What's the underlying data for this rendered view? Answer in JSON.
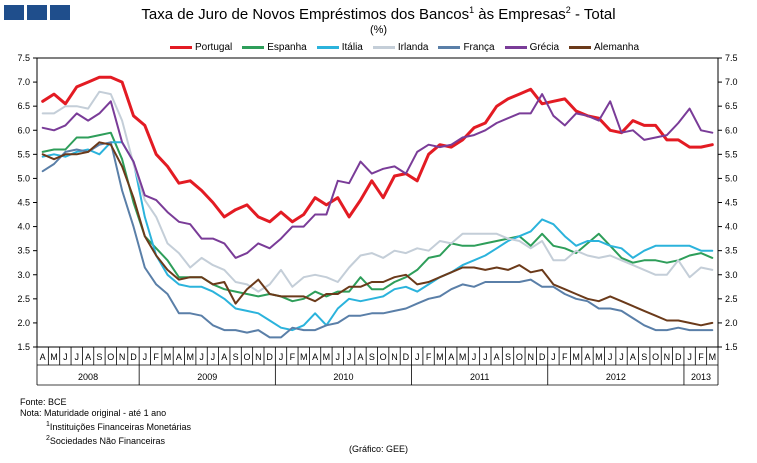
{
  "chart_data": {
    "type": "line",
    "title_text": "Taxa de Juro de Novos Empréstimos  dos Bancos",
    "title_mid": " às Empresas",
    "title_end": " - Total",
    "title_sup1": "1",
    "title_sup2": "2",
    "subtitle": "(%)",
    "ylim": [
      1.5,
      7.5
    ],
    "yticks": [
      "1.5",
      "2.0",
      "2.5",
      "3.0",
      "3.5",
      "4.0",
      "4.5",
      "5.0",
      "5.5",
      "6.0",
      "6.5",
      "7.0",
      "7.5"
    ],
    "x_month_labels": [
      "A",
      "M",
      "J",
      "J",
      "A",
      "S",
      "O",
      "N",
      "D",
      "J",
      "F",
      "M",
      "A",
      "M",
      "J",
      "J",
      "A",
      "S",
      "O",
      "N",
      "D",
      "J",
      "F",
      "M",
      "A",
      "M",
      "J",
      "J",
      "A",
      "S",
      "O",
      "N",
      "D",
      "J",
      "F",
      "M",
      "A",
      "M",
      "J",
      "J",
      "A",
      "S",
      "O",
      "N",
      "D",
      "J",
      "F",
      "M",
      "A",
      "M",
      "J",
      "J",
      "A",
      "S",
      "O",
      "N",
      "D",
      "J",
      "F",
      "M"
    ],
    "year_labels": [
      {
        "label": "2008",
        "start": 0,
        "end": 9
      },
      {
        "label": "2009",
        "start": 9,
        "end": 21
      },
      {
        "label": "2010",
        "start": 21,
        "end": 33
      },
      {
        "label": "2011",
        "start": 33,
        "end": 45
      },
      {
        "label": "2012",
        "start": 45,
        "end": 57
      },
      {
        "label": "2013",
        "start": 57,
        "end": 60
      }
    ],
    "series": [
      {
        "name": "Portugal",
        "color": "#e31b23",
        "width": 3,
        "values": [
          6.6,
          6.75,
          6.55,
          6.9,
          7.0,
          7.1,
          7.1,
          7.0,
          6.3,
          6.1,
          5.5,
          5.25,
          4.9,
          4.95,
          4.75,
          4.5,
          4.2,
          4.35,
          4.45,
          4.2,
          4.1,
          4.3,
          4.1,
          4.25,
          4.6,
          4.45,
          4.6,
          4.2,
          4.55,
          4.95,
          4.6,
          5.05,
          5.1,
          4.95,
          5.5,
          5.7,
          5.65,
          5.8,
          6.05,
          6.15,
          6.5,
          6.65,
          6.75,
          6.85,
          6.55,
          6.6,
          6.65,
          6.4,
          6.3,
          6.25,
          6.0,
          5.95,
          6.2,
          6.1,
          6.1,
          5.8,
          5.8,
          5.65,
          5.65,
          5.7
        ]
      },
      {
        "name": "Espanha",
        "color": "#2e9e5a",
        "width": 2,
        "values": [
          5.55,
          5.6,
          5.6,
          5.85,
          5.85,
          5.9,
          5.95,
          5.4,
          4.5,
          3.8,
          3.55,
          3.3,
          2.95,
          2.95,
          2.95,
          2.8,
          2.7,
          2.65,
          2.6,
          2.55,
          2.6,
          2.55,
          2.45,
          2.5,
          2.65,
          2.55,
          2.65,
          2.65,
          2.95,
          2.7,
          2.7,
          2.85,
          2.95,
          3.1,
          3.35,
          3.4,
          3.65,
          3.6,
          3.6,
          3.65,
          3.7,
          3.75,
          3.8,
          3.6,
          3.85,
          3.6,
          3.55,
          3.45,
          3.65,
          3.85,
          3.6,
          3.35,
          3.25,
          3.3,
          3.3,
          3.25,
          3.3,
          3.4,
          3.45,
          3.35
        ]
      },
      {
        "name": "Itália",
        "color": "#2bb3dc",
        "width": 2,
        "values": [
          5.45,
          5.5,
          5.45,
          5.55,
          5.6,
          5.5,
          5.75,
          5.75,
          5.35,
          4.2,
          3.4,
          3.0,
          2.8,
          2.75,
          2.75,
          2.65,
          2.5,
          2.3,
          2.25,
          2.2,
          2.05,
          1.9,
          1.85,
          1.95,
          2.2,
          1.95,
          2.3,
          2.5,
          2.45,
          2.5,
          2.55,
          2.7,
          2.75,
          2.65,
          2.8,
          2.95,
          3.05,
          3.2,
          3.3,
          3.4,
          3.55,
          3.7,
          3.8,
          3.9,
          4.15,
          4.05,
          3.8,
          3.6,
          3.7,
          3.7,
          3.6,
          3.55,
          3.35,
          3.5,
          3.6,
          3.6,
          3.6,
          3.6,
          3.5,
          3.5
        ]
      },
      {
        "name": "Irlanda",
        "color": "#c4ced8",
        "width": 2,
        "values": [
          6.35,
          6.35,
          6.5,
          6.5,
          6.45,
          6.8,
          6.75,
          6.2,
          5.3,
          4.55,
          4.2,
          3.65,
          3.45,
          3.15,
          3.35,
          3.2,
          3.1,
          2.85,
          2.8,
          2.65,
          2.8,
          3.1,
          2.75,
          2.95,
          3.0,
          2.95,
          2.85,
          3.15,
          3.4,
          3.45,
          3.35,
          3.5,
          3.45,
          3.55,
          3.5,
          3.7,
          3.65,
          3.85,
          3.85,
          3.85,
          3.85,
          3.75,
          3.7,
          3.55,
          3.7,
          3.3,
          3.3,
          3.5,
          3.4,
          3.35,
          3.4,
          3.3,
          3.2,
          3.1,
          3.0,
          3.0,
          3.3,
          2.95,
          3.15,
          3.1
        ]
      },
      {
        "name": "França",
        "color": "#5a7fa8",
        "width": 2,
        "values": [
          5.15,
          5.3,
          5.55,
          5.6,
          5.55,
          5.7,
          5.75,
          4.75,
          4.0,
          3.15,
          2.8,
          2.6,
          2.2,
          2.2,
          2.15,
          1.95,
          1.85,
          1.85,
          1.8,
          1.85,
          1.7,
          1.7,
          1.9,
          1.85,
          1.85,
          1.95,
          2.0,
          2.15,
          2.15,
          2.2,
          2.2,
          2.25,
          2.3,
          2.4,
          2.5,
          2.55,
          2.7,
          2.8,
          2.75,
          2.85,
          2.85,
          2.85,
          2.85,
          2.9,
          2.75,
          2.75,
          2.6,
          2.5,
          2.45,
          2.3,
          2.3,
          2.25,
          2.1,
          1.95,
          1.85,
          1.85,
          1.9,
          1.85,
          1.85,
          1.85
        ]
      },
      {
        "name": "Grécia",
        "color": "#7a3c98",
        "width": 2,
        "values": [
          6.05,
          6.0,
          6.1,
          6.35,
          6.2,
          6.35,
          6.6,
          5.75,
          5.35,
          4.65,
          4.55,
          4.3,
          4.1,
          4.05,
          3.75,
          3.75,
          3.65,
          3.35,
          3.45,
          3.65,
          3.55,
          3.75,
          4.0,
          4.0,
          4.25,
          4.25,
          4.95,
          4.9,
          5.35,
          5.1,
          5.2,
          5.25,
          5.1,
          5.55,
          5.7,
          5.65,
          5.7,
          5.85,
          5.9,
          6.0,
          6.15,
          6.25,
          6.35,
          6.35,
          6.75,
          6.3,
          6.1,
          6.35,
          6.3,
          6.2,
          6.6,
          5.95,
          6.0,
          5.8,
          5.85,
          5.9,
          6.15,
          6.45,
          6.0,
          5.95
        ]
      },
      {
        "name": "Alemanha",
        "color": "#6b3a1a",
        "width": 2,
        "values": [
          5.5,
          5.4,
          5.5,
          5.5,
          5.55,
          5.75,
          5.7,
          5.25,
          4.6,
          3.8,
          3.4,
          3.1,
          2.9,
          2.95,
          2.95,
          2.8,
          2.85,
          2.4,
          2.7,
          2.9,
          2.6,
          2.55,
          2.55,
          2.55,
          2.45,
          2.6,
          2.6,
          2.75,
          2.75,
          2.85,
          2.85,
          2.95,
          3.0,
          2.8,
          2.85,
          2.95,
          3.05,
          3.15,
          3.15,
          3.1,
          3.15,
          3.1,
          3.2,
          3.05,
          3.1,
          2.8,
          2.7,
          2.6,
          2.5,
          2.45,
          2.55,
          2.45,
          2.35,
          2.25,
          2.15,
          2.05,
          2.05,
          2.0,
          1.95,
          2.0
        ]
      }
    ]
  },
  "notes": {
    "source": "Fonte: BCE",
    "note": "Nota:  Maturidade original - até 1 ano",
    "fn1_mark": "1",
    "fn1": "Instituições Financeiras Monetárias",
    "fn2_mark": "2",
    "fn2": "Sociedades  Não Financeiras"
  },
  "credit": "(Gráfico:  GEE)",
  "colors": {
    "logo": "#1f4e8c"
  }
}
